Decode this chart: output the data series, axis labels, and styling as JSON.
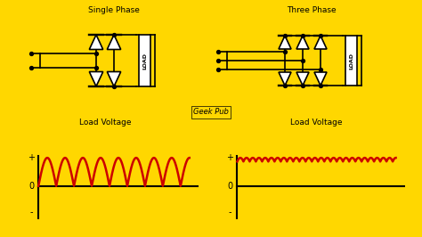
{
  "bg_color": "#FFD700",
  "line_color": "#000000",
  "red_color": "#CC0000",
  "single_phase_label": "Single Phase",
  "three_phase_label": "Three Phase",
  "load_voltage_label": "Load Voltage",
  "geek_pub_label": "Geek Pub",
  "plus_label": "+",
  "zero_label": "0",
  "minus_label": "-",
  "fig_width": 4.74,
  "fig_height": 2.66,
  "dpi": 100
}
